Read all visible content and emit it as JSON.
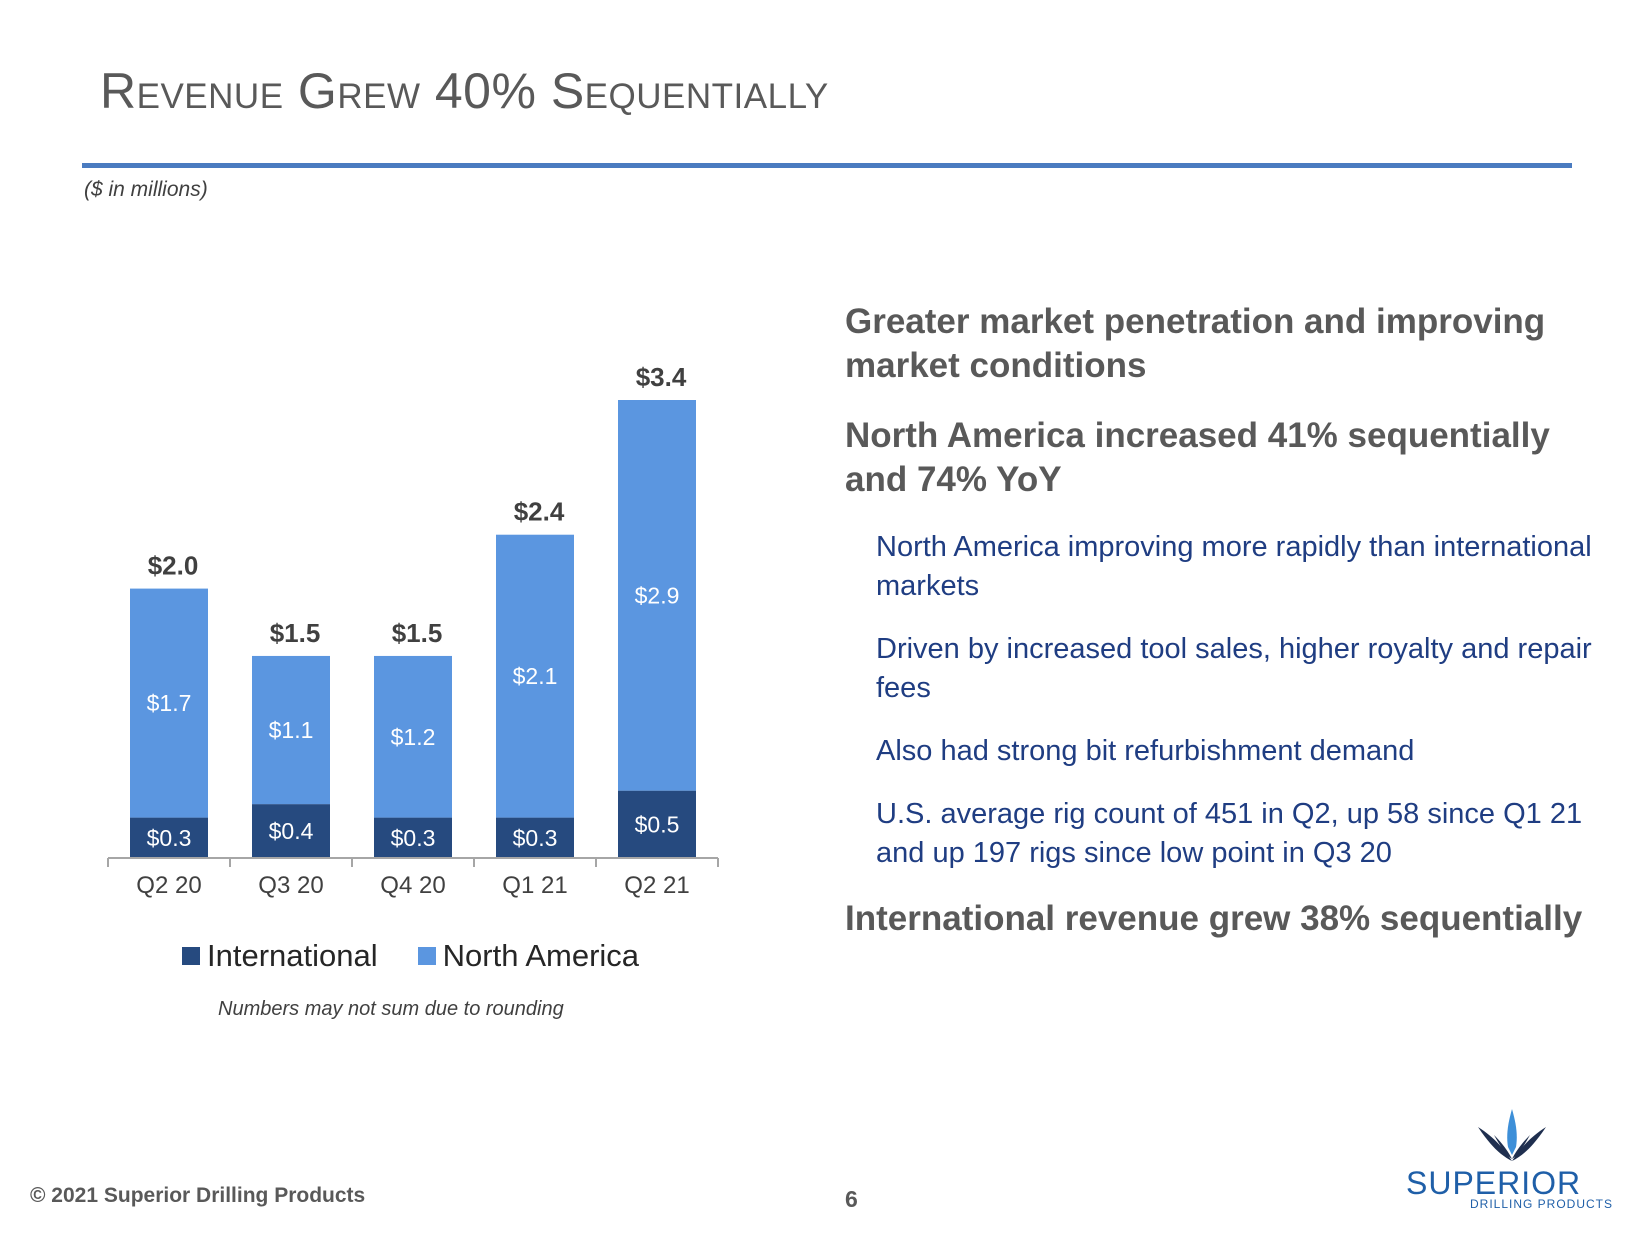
{
  "slide": {
    "title": "Revenue Grew 40% Sequentially",
    "units_note": "($ in millions)",
    "rounding_note": "Numbers may not sum due to rounding",
    "footer": "© 2021 Superior Drilling Products",
    "page_number": "6",
    "logo": {
      "name": "SUPERIOR",
      "tagline": "DRILLING PRODUCTS",
      "icon": "drill-bit-logo-icon"
    }
  },
  "colors": {
    "international": "#264a7f",
    "north_america": "#5b96e0",
    "accent_rule": "#4a7bc0"
  },
  "chart_data": {
    "type": "bar",
    "stacked": true,
    "categories": [
      "Q2 20",
      "Q3 20",
      "Q4 20",
      "Q1 21",
      "Q2 21"
    ],
    "series": [
      {
        "name": "International",
        "values": [
          0.3,
          0.4,
          0.3,
          0.3,
          0.5
        ],
        "labels": [
          "$0.3",
          "$0.4",
          "$0.3",
          "$0.3",
          "$0.5"
        ]
      },
      {
        "name": "North America",
        "values": [
          1.7,
          1.1,
          1.2,
          2.1,
          2.9
        ],
        "labels": [
          "$1.7",
          "$1.1",
          "$1.2",
          "$2.1",
          "$2.9"
        ]
      }
    ],
    "totals": [
      2.0,
      1.5,
      1.5,
      2.4,
      3.4
    ],
    "total_labels": [
      "$2.0",
      "$1.5",
      "$1.5",
      "$2.4",
      "$3.4"
    ],
    "ylim": [
      0,
      3.4
    ],
    "grid": false,
    "legend_position": "bottom"
  },
  "bullets": [
    {
      "level": 1,
      "text": "Greater market penetration and improving market conditions"
    },
    {
      "level": 1,
      "text": "North America increased 41% sequentially and 74% YoY"
    },
    {
      "level": 2,
      "text": "North America improving more rapidly than international markets"
    },
    {
      "level": 2,
      "text": "Driven by increased tool sales, higher royalty and repair fees"
    },
    {
      "level": 2,
      "text": "Also had strong bit refurbishment demand"
    },
    {
      "level": 2,
      "text": "U.S. average rig count of 451 in Q2, up 58 since Q1 21 and up 197 rigs since low point in Q3 20"
    },
    {
      "level": 1,
      "text": "International revenue grew 38% sequentially"
    }
  ]
}
